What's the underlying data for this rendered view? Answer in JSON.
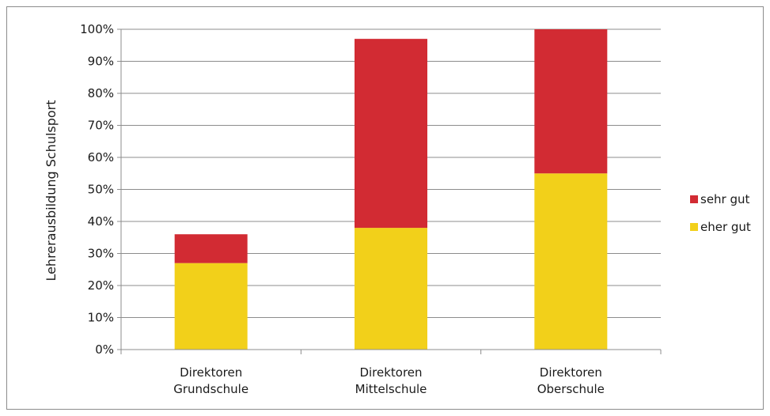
{
  "chart_data": {
    "type": "bar",
    "stacked": true,
    "title": "",
    "xlabel": "",
    "ylabel": "Lehrerausbildung Schulsport",
    "ylim": [
      0,
      100
    ],
    "y_tick_values": [
      0,
      10,
      20,
      30,
      40,
      50,
      60,
      70,
      80,
      90,
      100
    ],
    "y_tick_suffix": "%",
    "grid": true,
    "legend_position": "right",
    "categories": [
      [
        "Direktoren",
        "Grundschule"
      ],
      [
        "Direktoren",
        "Mittelschule"
      ],
      [
        "Direktoren",
        "Oberschule"
      ]
    ],
    "series": [
      {
        "name": "eher gut",
        "color": "#f2d01a",
        "values": [
          27,
          38,
          55
        ]
      },
      {
        "name": "sehr gut",
        "color": "#d22b33",
        "values": [
          9,
          59,
          45
        ]
      }
    ],
    "legend_order": [
      "sehr gut",
      "eher gut"
    ]
  }
}
